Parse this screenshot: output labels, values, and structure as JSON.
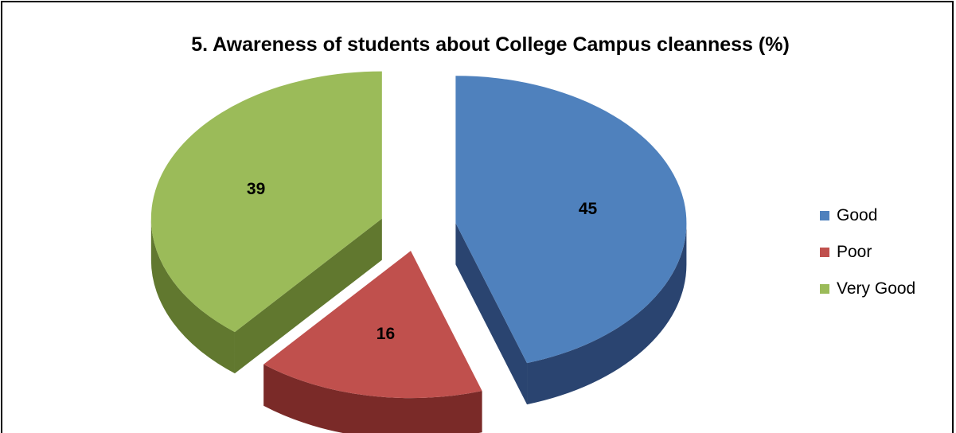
{
  "chart_data": {
    "type": "pie",
    "title": "5. Awareness of students about College Campus cleanness (%)",
    "categories": [
      "Good",
      "Poor",
      "Very Good"
    ],
    "values": [
      45,
      16,
      39
    ],
    "colors": [
      "#4F81BD",
      "#C0504D",
      "#9BBB59"
    ],
    "side_colors": [
      "#2A4470",
      "#7A2A28",
      "#61782F"
    ],
    "data_labels": [
      "45",
      "16",
      "39"
    ],
    "exploded": true,
    "three_d": true,
    "legend": {
      "position": "right",
      "items": [
        {
          "label": "Good",
          "color": "#4F81BD"
        },
        {
          "label": "Poor",
          "color": "#C0504D"
        },
        {
          "label": "Very Good",
          "color": "#9BBB59"
        }
      ]
    }
  }
}
